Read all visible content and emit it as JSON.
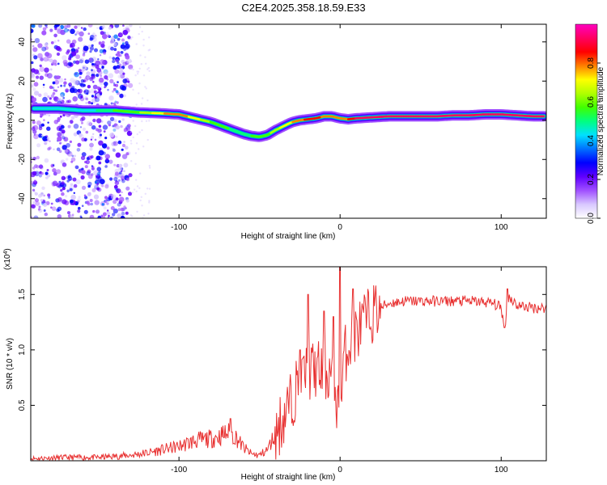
{
  "title": "C2E4.2025.358.18.59.E33",
  "chart_data": [
    {
      "type": "heatmap",
      "name": "spectrogram",
      "xlabel": "Height of straight line (km)",
      "ylabel": "Frequency (Hz)",
      "xlim": [
        -192,
        128
      ],
      "ylim": [
        -50,
        49
      ],
      "x_ticks": [
        -100,
        0,
        100
      ],
      "y_ticks": [
        -40,
        -20,
        0,
        20,
        40
      ],
      "colorbar": {
        "label": "Normalized spectral amplitude",
        "range": [
          0,
          1
        ],
        "ticks": [
          0.0,
          0.2,
          0.4,
          0.6,
          0.8
        ],
        "tick_labels": [
          "0.0",
          "0.2",
          "0.4",
          "0.6",
          "0.8"
        ],
        "stops": [
          "#ffffff",
          "#d8c8ff",
          "#a050ff",
          "#6000ff",
          "#0000ff",
          "#0070ff",
          "#00e0ff",
          "#00ff80",
          "#40ff00",
          "#b0ff00",
          "#ffff00",
          "#ff8000",
          "#ff0000",
          "#ff0060",
          "#ff00c0"
        ]
      },
      "ridge": {
        "x": [
          -190,
          -175,
          -160,
          -140,
          -125,
          -110,
          -100,
          -90,
          -80,
          -70,
          -65,
          -60,
          -55,
          -50,
          -45,
          -40,
          -35,
          -30,
          -25,
          -20,
          -15,
          -10,
          -5,
          0,
          5,
          10,
          20,
          30,
          40,
          50,
          60,
          70,
          80,
          90,
          100,
          110,
          120,
          128
        ],
        "freq": [
          6,
          6,
          5,
          5,
          4,
          3.5,
          3,
          1,
          -1,
          -4,
          -5.5,
          -7,
          -8,
          -8.5,
          -7.5,
          -5,
          -3,
          -1,
          0,
          0.5,
          1,
          2,
          2,
          1,
          0.5,
          1,
          1.5,
          2,
          2,
          2,
          2,
          2.5,
          2.5,
          3,
          3,
          2.5,
          2,
          2
        ],
        "amplitude": [
          0.45,
          0.45,
          0.4,
          0.55,
          0.6,
          0.75,
          0.8,
          0.7,
          0.6,
          0.55,
          0.5,
          0.5,
          0.55,
          0.6,
          0.6,
          0.65,
          0.7,
          0.75,
          0.8,
          0.85,
          0.85,
          0.8,
          0.8,
          0.75,
          0.85,
          0.9,
          0.9,
          0.95,
          0.95,
          0.95,
          0.95,
          0.95,
          0.9,
          0.95,
          0.9,
          0.95,
          0.9,
          0.9
        ]
      }
    },
    {
      "type": "line",
      "name": "snr",
      "xlabel": "Height of straight line (km)",
      "ylabel": "SNR (10 * v/v)",
      "scale_label": "(x10",
      "scale_exp": "4",
      "xlim": [
        -192,
        128
      ],
      "ylim": [
        0,
        1.75
      ],
      "x_ticks": [
        -100,
        0,
        100
      ],
      "y_ticks": [
        0.5,
        1.0,
        1.5
      ],
      "y_tick_labels": [
        "0.5",
        "1.0",
        "1.5"
      ],
      "color": "#e83030",
      "series": {
        "x": [
          -192,
          -170,
          -150,
          -130,
          -120,
          -110,
          -100,
          -90,
          -80,
          -75,
          -70,
          -65,
          -60,
          -55,
          -50,
          -45,
          -40,
          -35,
          -30,
          -25,
          -20,
          -15,
          -10,
          -5,
          -2,
          0,
          2,
          5,
          10,
          15,
          20,
          25,
          30,
          40,
          50,
          60,
          70,
          80,
          90,
          95,
          100,
          102,
          105,
          110,
          120,
          128
        ],
        "y": [
          0.02,
          0.03,
          0.03,
          0.05,
          0.07,
          0.1,
          0.13,
          0.18,
          0.2,
          0.22,
          0.25,
          0.22,
          0.12,
          0.06,
          0.05,
          0.1,
          0.25,
          0.4,
          0.55,
          0.75,
          0.8,
          0.82,
          0.78,
          0.8,
          0.55,
          0.3,
          0.9,
          1.05,
          1.15,
          1.25,
          1.33,
          1.38,
          1.42,
          1.44,
          1.44,
          1.44,
          1.44,
          1.44,
          1.43,
          1.42,
          1.38,
          1.2,
          1.48,
          1.4,
          1.38,
          1.38
        ]
      },
      "spikes": [
        {
          "x": -68,
          "y": 0.38
        },
        {
          "x": -25,
          "y": 1.0
        },
        {
          "x": -20,
          "y": 1.5
        },
        {
          "x": -10,
          "y": 1.35
        },
        {
          "x": -4,
          "y": 1.3
        },
        {
          "x": 0,
          "y": 1.75
        },
        {
          "x": 8,
          "y": 1.55
        },
        {
          "x": 102,
          "y": 1.2
        },
        {
          "x": 104,
          "y": 1.55
        }
      ]
    }
  ]
}
